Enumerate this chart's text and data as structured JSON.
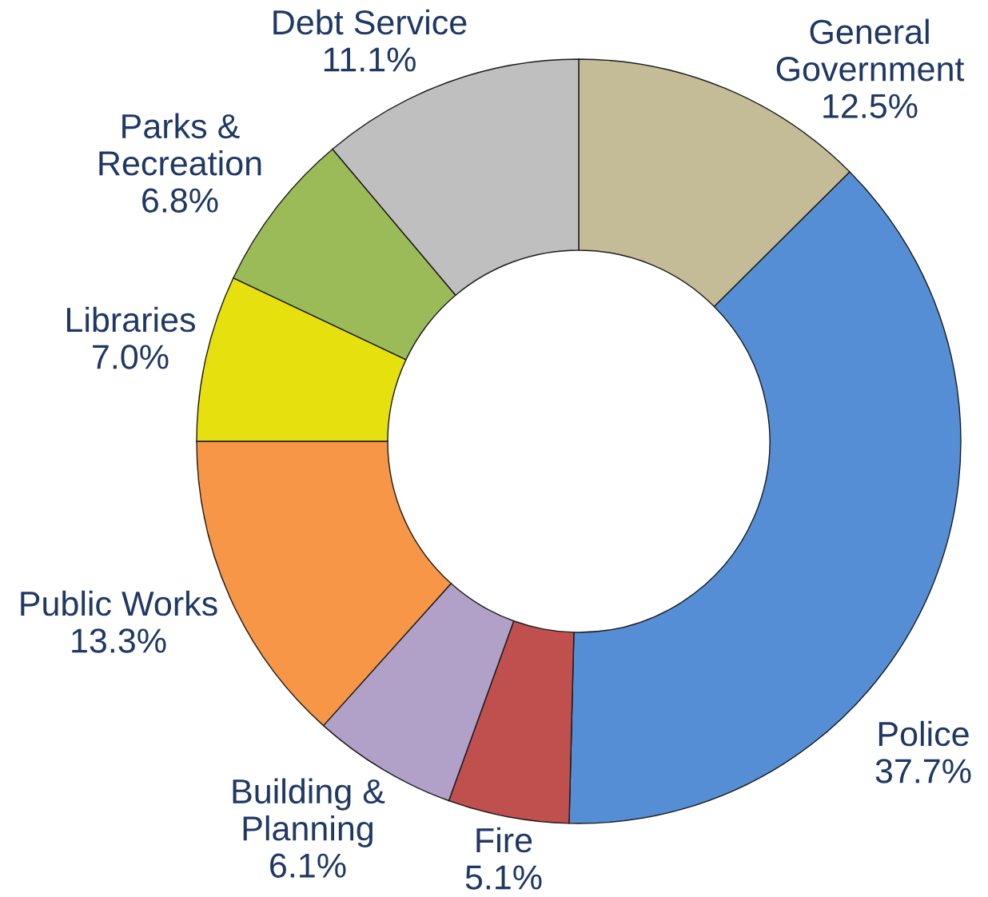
{
  "chart_data": {
    "type": "donut",
    "categories": [
      "General\nGovernment",
      "Police",
      "Fire",
      "Building &\nPlanning",
      "Public Works",
      "Libraries",
      "Parks &\nRecreation",
      "Debt Service"
    ],
    "values": [
      12.5,
      37.7,
      5.1,
      6.1,
      13.3,
      7.0,
      6.8,
      11.1
    ],
    "value_labels": [
      "12.5%",
      "37.7%",
      "5.1%",
      "6.1%",
      "13.3%",
      "7.0%",
      "6.8%",
      "11.1%"
    ],
    "colors": [
      "#c4bc96",
      "#558ed5",
      "#c0504d",
      "#b1a0c7",
      "#f79646",
      "#e6e00e",
      "#9bbb59",
      "#bfbfbf"
    ],
    "legend": false
  }
}
